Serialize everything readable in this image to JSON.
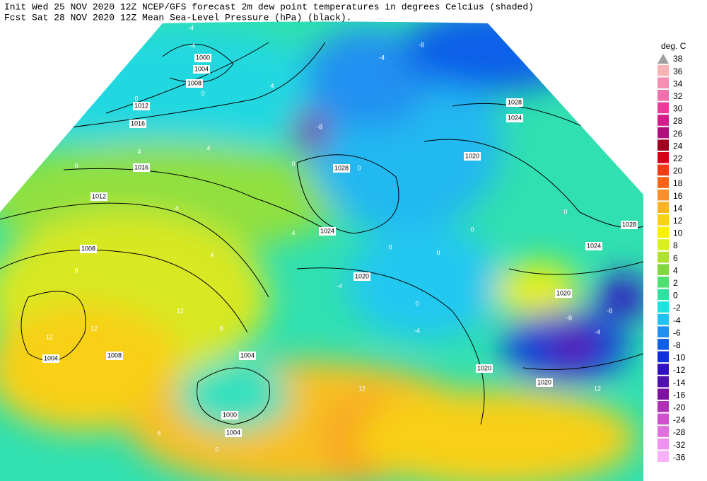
{
  "header": {
    "line1": "Init  Wed 25 NOV 2020 12Z  NCEP/GFS forecast 2m dew point temperatures in degrees Celcius (shaded)",
    "line2": "Fcst Sat 28 NOV 2020 12Z  Mean Sea-Level Pressure (hPa) (black)."
  },
  "legend": {
    "title": "deg. C",
    "levels": [
      38,
      36,
      34,
      32,
      30,
      28,
      26,
      24,
      22,
      20,
      18,
      16,
      14,
      12,
      10,
      8,
      6,
      4,
      2,
      0,
      -2,
      -4,
      -6,
      -8,
      -10,
      -12,
      -14,
      -16,
      -20,
      -24,
      -28,
      -32,
      -36
    ],
    "colors": [
      "#a0a0a0",
      "#f8b4b4",
      "#f490b4",
      "#ee70ac",
      "#e83c9c",
      "#d41c8c",
      "#b0107c",
      "#a00020",
      "#d40018",
      "#f03c14",
      "#f86418",
      "#f8902c",
      "#f8b424",
      "#f8d018",
      "#f8f000",
      "#d8f020",
      "#b0e030",
      "#80d840",
      "#50e070",
      "#30e0a0",
      "#20e0e0",
      "#20c0f0",
      "#2090f0",
      "#1060e8",
      "#1030d8",
      "#3010c0",
      "#5010b0",
      "#8010a0",
      "#b030b8",
      "#d050d0",
      "#e070e0",
      "#f090f0",
      "#f8b0f8"
    ]
  },
  "isobar_labels": [
    "1000",
    "1004",
    "1008",
    "1012",
    "1016",
    "1016",
    "1012",
    "1008",
    "1004",
    "1008",
    "1004",
    "1000",
    "1004",
    "1028",
    "1024",
    "1020",
    "1020",
    "1024",
    "1028",
    "1028",
    "1024",
    "1020",
    "1020",
    "1020"
  ],
  "contour_labels": [
    "0",
    "0",
    "0",
    "0",
    "0",
    "0",
    "0",
    "0",
    "0",
    "0",
    "0",
    "4",
    "4",
    "4",
    "4",
    "4",
    "4",
    "8",
    "8",
    "8",
    "12",
    "12",
    "12",
    "12",
    "12",
    "-4",
    "-4",
    "-4",
    "-4",
    "-4",
    "-4",
    "-8",
    "-8",
    "-8",
    "-8"
  ]
}
